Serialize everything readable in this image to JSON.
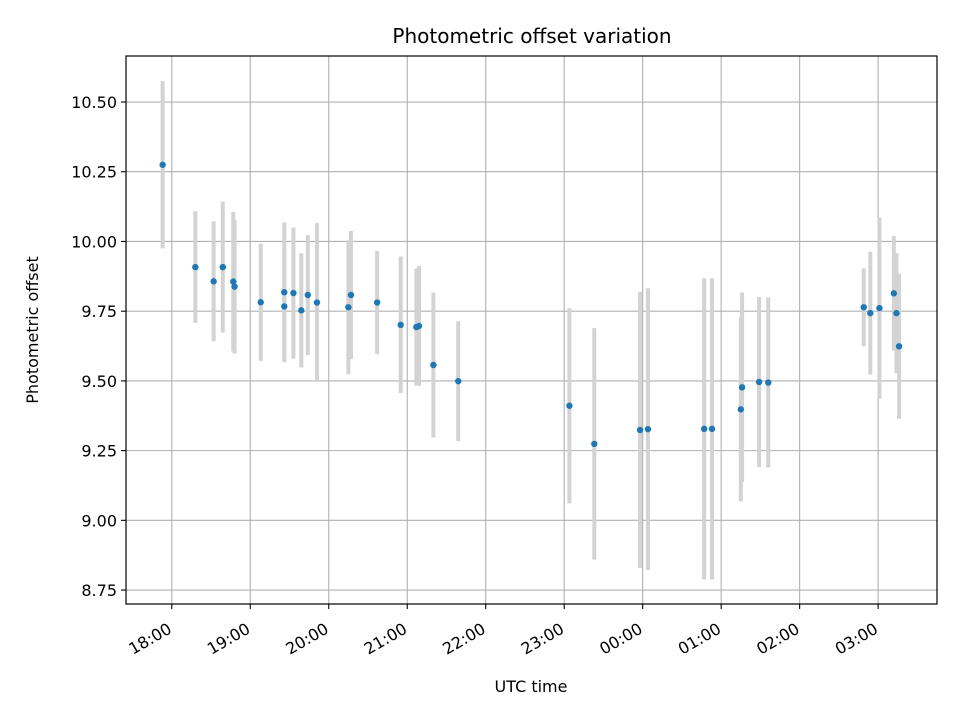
{
  "chart_data": {
    "type": "scatter",
    "title": "Photometric offset variation",
    "xlabel": "UTC time",
    "ylabel": "Photometric offset",
    "x_axis_type": "time",
    "xlim": [
      "17:25",
      "03:45"
    ],
    "ylim": [
      8.7,
      10.665
    ],
    "grid": true,
    "legend": "none",
    "x_ticks": [
      {
        "time": "18:00",
        "label": "18:00"
      },
      {
        "time": "19:00",
        "label": "19:00"
      },
      {
        "time": "20:00",
        "label": "20:00"
      },
      {
        "time": "21:00",
        "label": "21:00"
      },
      {
        "time": "22:00",
        "label": "22:00"
      },
      {
        "time": "23:00",
        "label": "23:00"
      },
      {
        "time": "00:00",
        "label": "00:00"
      },
      {
        "time": "01:00",
        "label": "01:00"
      },
      {
        "time": "02:00",
        "label": "02:00"
      },
      {
        "time": "03:00",
        "label": "03:00"
      }
    ],
    "y_ticks": [
      {
        "value": 8.75,
        "label": "8.75"
      },
      {
        "value": 9.0,
        "label": "9.00"
      },
      {
        "value": 9.25,
        "label": "9.25"
      },
      {
        "value": 9.5,
        "label": "9.50"
      },
      {
        "value": 9.75,
        "label": "9.75"
      },
      {
        "value": 10.0,
        "label": "10.00"
      },
      {
        "value": 10.25,
        "label": "10.25"
      },
      {
        "value": 10.5,
        "label": "10.50"
      }
    ],
    "series": [
      {
        "marker_color": "#1f77b4",
        "errorbar_color": "#d3d3d3",
        "points": [
          {
            "time": "17:53",
            "y": 10.275,
            "err": 0.3
          },
          {
            "time": "18:18",
            "y": 9.908,
            "err": 0.2
          },
          {
            "time": "18:32",
            "y": 9.857,
            "err": 0.215
          },
          {
            "time": "18:39",
            "y": 9.908,
            "err": 0.235
          },
          {
            "time": "18:47",
            "y": 9.856,
            "err": 0.25
          },
          {
            "time": "18:48",
            "y": 9.838,
            "err": 0.24
          },
          {
            "time": "19:08",
            "y": 9.782,
            "err": 0.21
          },
          {
            "time": "19:26",
            "y": 9.818,
            "err": 0.25
          },
          {
            "time": "19:26",
            "y": 9.767,
            "err": 0.2
          },
          {
            "time": "19:33",
            "y": 9.815,
            "err": 0.235
          },
          {
            "time": "19:39",
            "y": 9.753,
            "err": 0.205
          },
          {
            "time": "19:44",
            "y": 9.808,
            "err": 0.215
          },
          {
            "time": "19:51",
            "y": 9.781,
            "err": 0.285
          },
          {
            "time": "20:15",
            "y": 9.764,
            "err": 0.24
          },
          {
            "time": "20:17",
            "y": 9.808,
            "err": 0.23
          },
          {
            "time": "20:37",
            "y": 9.781,
            "err": 0.185
          },
          {
            "time": "20:55",
            "y": 9.701,
            "err": 0.245
          },
          {
            "time": "21:07",
            "y": 9.693,
            "err": 0.21
          },
          {
            "time": "21:09",
            "y": 9.697,
            "err": 0.215
          },
          {
            "time": "21:20",
            "y": 9.557,
            "err": 0.26
          },
          {
            "time": "21:39",
            "y": 9.499,
            "err": 0.215
          },
          {
            "time": "23:04",
            "y": 9.411,
            "err": 0.35
          },
          {
            "time": "23:23",
            "y": 9.274,
            "err": 0.415
          },
          {
            "time": "23:58",
            "y": 9.324,
            "err": 0.495
          },
          {
            "time": "00:04",
            "y": 9.327,
            "err": 0.505
          },
          {
            "time": "00:47",
            "y": 9.328,
            "err": 0.54
          },
          {
            "time": "00:53",
            "y": 9.328,
            "err": 0.54
          },
          {
            "time": "01:15",
            "y": 9.398,
            "err": 0.33
          },
          {
            "time": "01:16",
            "y": 9.477,
            "err": 0.34
          },
          {
            "time": "01:29",
            "y": 9.496,
            "err": 0.305
          },
          {
            "time": "01:36",
            "y": 9.494,
            "err": 0.305
          },
          {
            "time": "02:49",
            "y": 9.764,
            "err": 0.14
          },
          {
            "time": "02:54",
            "y": 9.743,
            "err": 0.22
          },
          {
            "time": "03:01",
            "y": 9.761,
            "err": 0.325
          },
          {
            "time": "03:12",
            "y": 9.814,
            "err": 0.205
          },
          {
            "time": "03:14",
            "y": 9.743,
            "err": 0.215
          },
          {
            "time": "03:16",
            "y": 9.624,
            "err": 0.26
          }
        ]
      }
    ]
  }
}
